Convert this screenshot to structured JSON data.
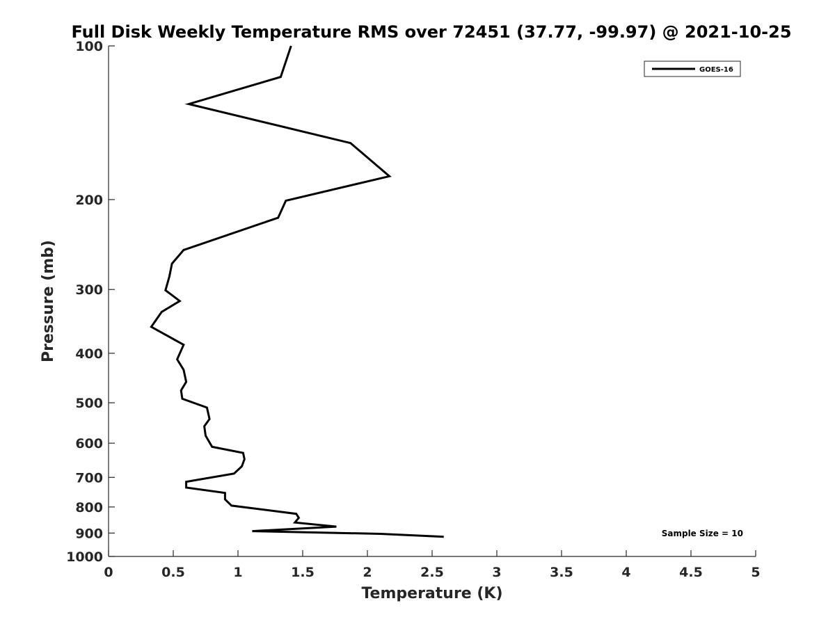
{
  "chart_data": {
    "type": "line",
    "title": "Full Disk Weekly Temperature RMS over 72451 (37.77, -99.97) @ 2021-10-25",
    "xlabel": "Temperature (K)",
    "ylabel": "Pressure (mb)",
    "xlim": [
      0,
      5
    ],
    "ylim": [
      100,
      1000
    ],
    "y_scale": "log",
    "y_reversed": true,
    "x_ticks": [
      "0",
      "0.5",
      "1",
      "1.5",
      "2",
      "2.5",
      "3",
      "3.5",
      "4",
      "4.5",
      "5"
    ],
    "y_ticks": [
      "100",
      "200",
      "300",
      "400",
      "500",
      "600",
      "700",
      "800",
      "900",
      "1000"
    ],
    "grid": false,
    "legend_position": "top-right",
    "annotation": "Sample Size = 10",
    "series": [
      {
        "name": "GOES-16",
        "color": "#000000",
        "x": [
          1.41,
          1.33,
          0.62,
          1.87,
          2.17,
          1.37,
          1.31,
          0.58,
          0.49,
          0.47,
          0.44,
          0.55,
          0.41,
          0.33,
          0.58,
          0.53,
          0.58,
          0.6,
          0.56,
          0.57,
          0.76,
          0.78,
          0.74,
          0.75,
          0.8,
          1.04,
          1.05,
          1.03,
          0.97,
          0.6,
          0.6,
          0.9,
          0.9,
          0.95,
          1.45,
          1.47,
          1.44,
          1.76,
          1.11,
          2.1,
          2.59
        ],
        "y": [
          100,
          115,
          130,
          155,
          180,
          201,
          217,
          251,
          267,
          283,
          301,
          316,
          332,
          355,
          385,
          411,
          431,
          455,
          473,
          491,
          511,
          538,
          556,
          580,
          610,
          627,
          645,
          666,
          688,
          714,
          733,
          751,
          773,
          795,
          825,
          840,
          858,
          874,
          892,
          903,
          915
        ]
      }
    ]
  }
}
